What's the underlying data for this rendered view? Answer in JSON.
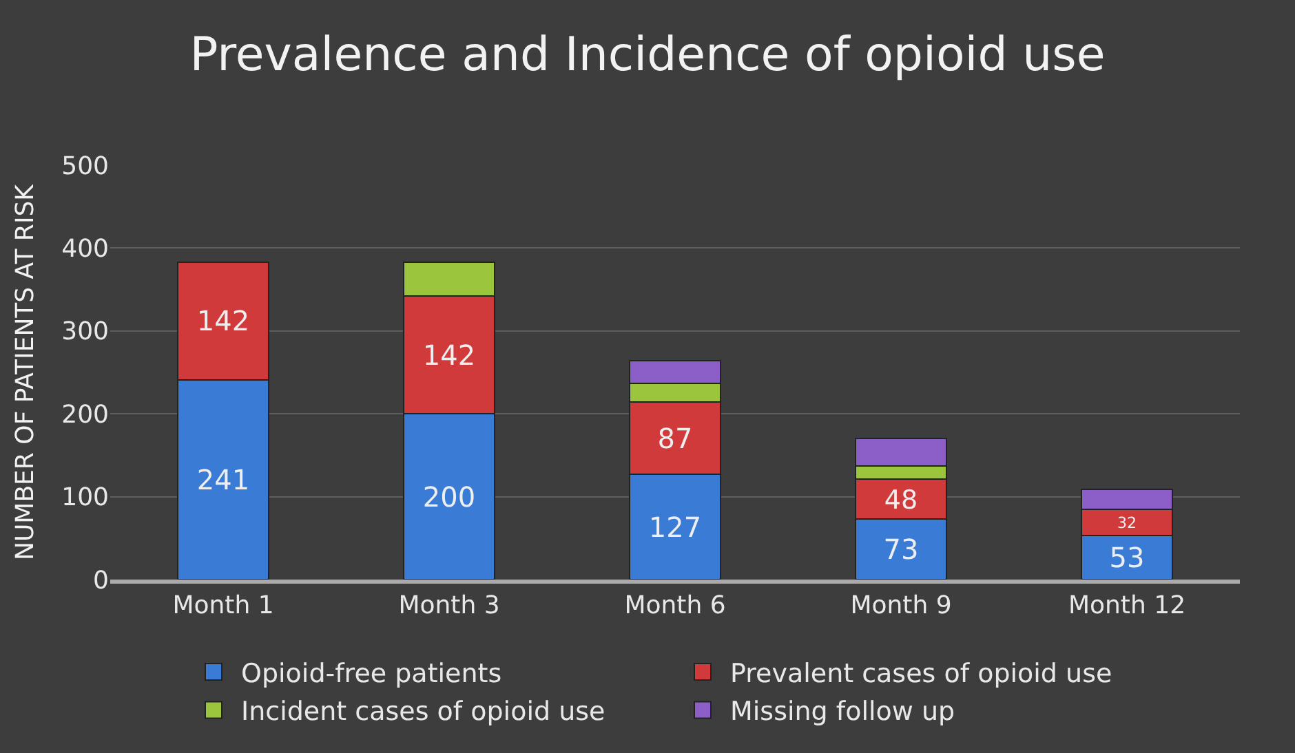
{
  "chart_data": {
    "type": "bar",
    "title": "Prevalence and Incidence of opioid use",
    "ylabel": "NUMBER OF PATIENTS AT RISK",
    "categories": [
      "Month 1",
      "Month 3",
      "Month 6",
      "Month 9",
      "Month 12"
    ],
    "stacked": true,
    "ylim": [
      0,
      500
    ],
    "yticks": [
      0,
      100,
      200,
      300,
      400,
      500
    ],
    "grid": "y",
    "legend": "bottom",
    "series": [
      {
        "name": "Opioid-free patients",
        "color": "#3a7bd5",
        "values": [
          241,
          200,
          127,
          73,
          53
        ],
        "value_labels": [
          "241",
          "200",
          "127",
          "73",
          "53"
        ]
      },
      {
        "name": "Prevalent cases of opioid use",
        "color": "#d03a3a",
        "values": [
          142,
          142,
          87,
          48,
          32
        ],
        "value_labels": [
          "142",
          "142",
          "87",
          "48",
          "32"
        ]
      },
      {
        "name": "Incident cases of opioid use",
        "color": "#9bc53d",
        "values": [
          null,
          41,
          23,
          16,
          null
        ]
      },
      {
        "name": "Missing follow up",
        "color": "#8b5fc7",
        "values": [
          null,
          null,
          27,
          33,
          24
        ]
      }
    ]
  }
}
